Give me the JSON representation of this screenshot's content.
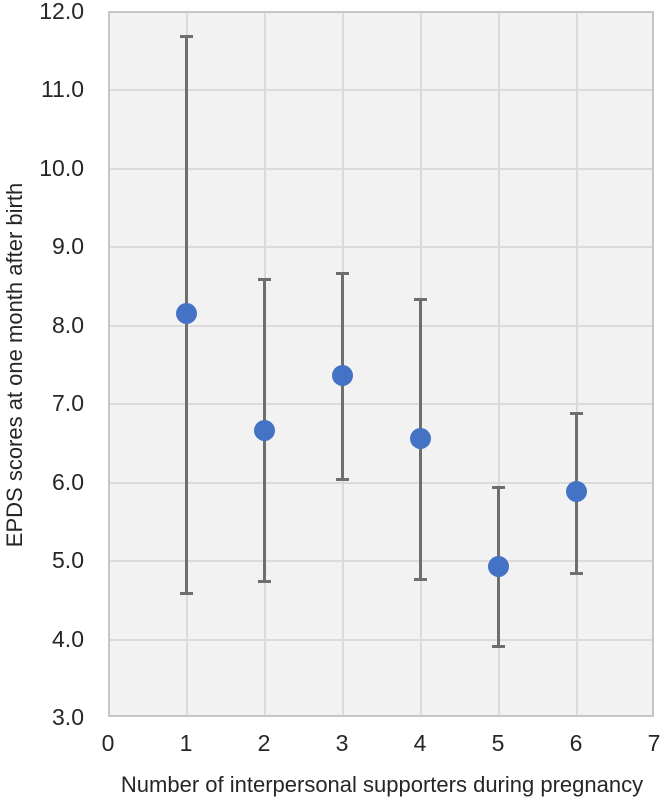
{
  "chart_data": {
    "type": "scatter",
    "title": "",
    "xlabel": "Number of interpersonal supporters during pregnancy",
    "ylabel": "EPDS scores at one month after birth",
    "xlim": [
      0,
      7
    ],
    "ylim": [
      3,
      12
    ],
    "x_ticks": [
      0,
      1,
      2,
      3,
      4,
      5,
      6,
      7
    ],
    "y_ticks": [
      3.0,
      4.0,
      5.0,
      6.0,
      7.0,
      8.0,
      9.0,
      10.0,
      11.0,
      12.0
    ],
    "y_tick_decimals": 1,
    "grid": true,
    "legend": "none",
    "series": [
      {
        "name": "EPDS scores",
        "points": [
          {
            "x": 1,
            "y": 8.15,
            "err_low": 4.6,
            "err_high": 11.7
          },
          {
            "x": 2,
            "y": 6.65,
            "err_low": 4.75,
            "err_high": 8.6
          },
          {
            "x": 3,
            "y": 7.35,
            "err_low": 6.05,
            "err_high": 8.68
          },
          {
            "x": 4,
            "y": 6.55,
            "err_low": 4.78,
            "err_high": 8.35
          },
          {
            "x": 5,
            "y": 4.92,
            "err_low": 3.92,
            "err_high": 5.95
          },
          {
            "x": 6,
            "y": 5.87,
            "err_low": 4.85,
            "err_high": 6.9
          }
        ]
      }
    ],
    "colors": {
      "marker": "#4472c4",
      "error_bar": "#6e6e6e",
      "plot_background": "#f2f2f2",
      "gridline": "#dbdbdb",
      "plot_border": "#c6c6c6",
      "text": "#262626"
    }
  }
}
